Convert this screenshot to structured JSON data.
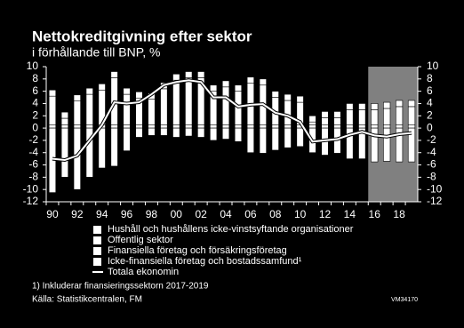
{
  "chart_data": {
    "type": "bar_line",
    "title": "Nettokreditgivning efter sektor",
    "subtitle": "i förhållande till BNP, %",
    "categories": [
      "90",
      null,
      "92",
      null,
      "94",
      null,
      "96",
      null,
      "98",
      null,
      "00",
      null,
      "02",
      null,
      "04",
      null,
      "06",
      null,
      "08",
      null,
      "10",
      null,
      "12",
      null,
      "14",
      null,
      "16",
      null,
      "18",
      null
    ],
    "series": [
      {
        "name": "Hushåll och hushållens icke-vinstsyftande organisationer",
        "color": "#ffffff",
        "values": [
          0.5,
          0.5,
          0.5,
          0.5,
          0.5,
          0.5,
          0.5,
          0.5,
          0.5,
          0.5,
          0.5,
          0.5,
          0.5,
          0.5,
          0.5,
          0.5,
          0.5,
          0.5,
          0.5,
          0.5,
          0.5,
          0.5,
          0.5,
          0.5,
          0.5,
          0.5,
          0.5,
          0.5,
          0.5,
          0.5
        ]
      },
      {
        "name": "Offentlig sektor",
        "color": "#ffffff",
        "values": [
          4.7,
          1.1,
          3.9,
          5,
          5.7,
          7.7,
          5,
          4.4,
          4.2,
          5.9,
          7.3,
          7.7,
          7.7,
          5.5,
          6.2,
          5.5,
          6.8,
          6.5,
          4.5,
          4,
          3.7,
          0.5,
          1.2,
          1.2,
          2.5,
          2.5,
          2.5,
          2.7,
          3,
          3
        ]
      },
      {
        "name": "Finansiella företag och försäkringsföretag",
        "color": "#ffffff",
        "values": [
          1,
          1,
          1,
          1,
          1,
          1,
          1,
          1,
          1,
          1,
          1,
          1,
          1,
          1,
          1,
          1,
          1,
          1,
          1,
          1,
          1,
          1,
          1,
          1,
          1,
          1,
          1,
          1,
          1,
          1
        ]
      },
      {
        "name": "Icke-finansiella företag och bostadssamfund¹",
        "color": "#ffffff",
        "values": [
          -10.5,
          -8,
          -10,
          -8,
          -6.5,
          -6.2,
          -3.7,
          -1.5,
          -1.2,
          -1.2,
          -1.5,
          -1.3,
          -1.5,
          -2,
          -1.8,
          -2.2,
          -4,
          -4.1,
          -3.6,
          -3.2,
          -3,
          -4,
          -4.4,
          -4.1,
          -5,
          -5,
          -5.5,
          -5.4,
          -5.5,
          -5.5
        ]
      },
      {
        "name": "Totala ekonomin",
        "color": "#ffffff",
        "line": true,
        "values": [
          -5,
          -5.2,
          -4.5,
          -2,
          0.5,
          4.2,
          4,
          4.2,
          5.5,
          7,
          7.5,
          7.8,
          7.5,
          5,
          5,
          3.5,
          3.8,
          3.9,
          2.5,
          2,
          1,
          -2.2,
          -2,
          -1.8,
          -1.1,
          -0.6,
          -1.2,
          -1.4,
          -1,
          -0.8
        ]
      }
    ],
    "ylim": [
      -12,
      10
    ],
    "yticks": [
      -12,
      -10,
      -8,
      -6,
      -4,
      -2,
      0,
      2,
      4,
      6,
      8,
      10
    ],
    "y2lim": [
      -12,
      10
    ],
    "y2ticks": [
      -12,
      -10,
      -8,
      -6,
      -4,
      -2,
      0,
      2,
      4,
      6,
      8,
      10
    ],
    "shaded_from": "16",
    "shade_color": "#808080",
    "footnote": "1) Inkluderar finansieringssektorn 2017-2019",
    "source": "Källa: Statistikcentralen, FM",
    "code": "VM34170"
  }
}
